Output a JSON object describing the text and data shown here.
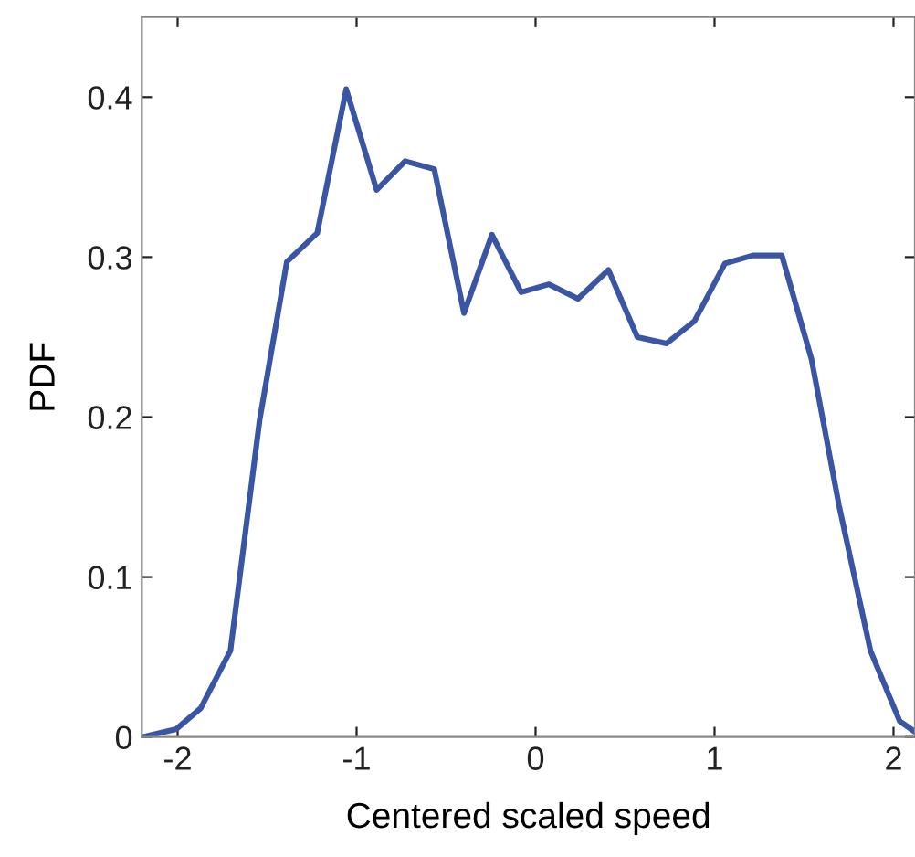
{
  "chart_data": {
    "type": "line",
    "xlabel": "Centered scaled speed",
    "ylabel": "PDF",
    "series": [
      {
        "color": "#3a55a4",
        "x": [
          -2.197,
          -2.007,
          -1.871,
          -1.705,
          -1.542,
          -1.39,
          -1.22,
          -1.058,
          -0.888,
          -0.729,
          -0.566,
          -0.4,
          -0.244,
          -0.081,
          0.075,
          0.237,
          0.407,
          0.569,
          0.732,
          0.888,
          1.058,
          1.214,
          1.376,
          1.542,
          1.695,
          1.871,
          2.034,
          2.11
        ],
        "values": [
          0,
          0.005,
          0.018,
          0.054,
          0.198,
          0.297,
          0.315,
          0.405,
          0.342,
          0.36,
          0.355,
          0.265,
          0.314,
          0.278,
          0.283,
          0.274,
          0.292,
          0.25,
          0.246,
          0.26,
          0.296,
          0.301,
          0.301,
          0.236,
          0.145,
          0.054,
          0.01,
          0.004
        ]
      }
    ],
    "xlim": [
      -2.2,
      2.12
    ],
    "ylim": [
      0,
      0.45
    ],
    "xticks": [
      -2,
      -1,
      0,
      1,
      2
    ],
    "yticks": [
      0,
      0.1,
      0.2,
      0.3,
      0.4
    ],
    "grid": false,
    "marker": "none",
    "line_style": "solid"
  }
}
